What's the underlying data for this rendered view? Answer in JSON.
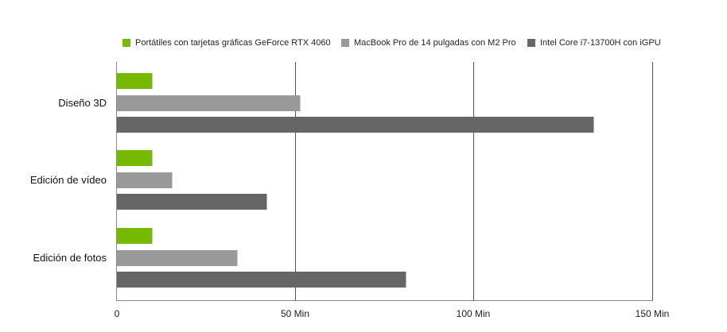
{
  "legend": {
    "items": [
      {
        "label": "Portátiles con tarjetas gráficas GeForce RTX 4060",
        "color": "#76b900"
      },
      {
        "label": "MacBook Pro de 14 pulgadas con M2 Pro",
        "color": "#999999"
      },
      {
        "label": "Intel Core i7-13700H con iGPU",
        "color": "#666666"
      }
    ]
  },
  "axis": {
    "ticks": [
      "0",
      "50 Min",
      "100 Min",
      "150 Min"
    ]
  },
  "categories": [
    "Diseño 3D",
    "Edición de vídeo",
    "Edición de fotos"
  ],
  "chart_data": {
    "type": "bar",
    "orientation": "horizontal",
    "title": "",
    "xlabel": "",
    "ylabel": "",
    "xlim": [
      0,
      150
    ],
    "x_ticks": [
      "0",
      "50 Min",
      "100 Min",
      "150 Min"
    ],
    "grid": true,
    "legend_position": "top",
    "categories": [
      "Diseño 3D",
      "Edición de vídeo",
      "Edición de fotos"
    ],
    "series": [
      {
        "name": "Portátiles con tarjetas gráficas GeForce RTX 4060",
        "color": "#76b900",
        "values": [
          10,
          10,
          10
        ]
      },
      {
        "name": "MacBook Pro de 14 pulgadas con M2 Pro",
        "color": "#999999",
        "values": [
          51.5,
          15.6,
          33.9
        ]
      },
      {
        "name": "Intel Core i7-13700H con iGPU",
        "color": "#666666",
        "values": [
          133.7,
          42.1,
          81.1
        ]
      }
    ],
    "units": "Min"
  }
}
